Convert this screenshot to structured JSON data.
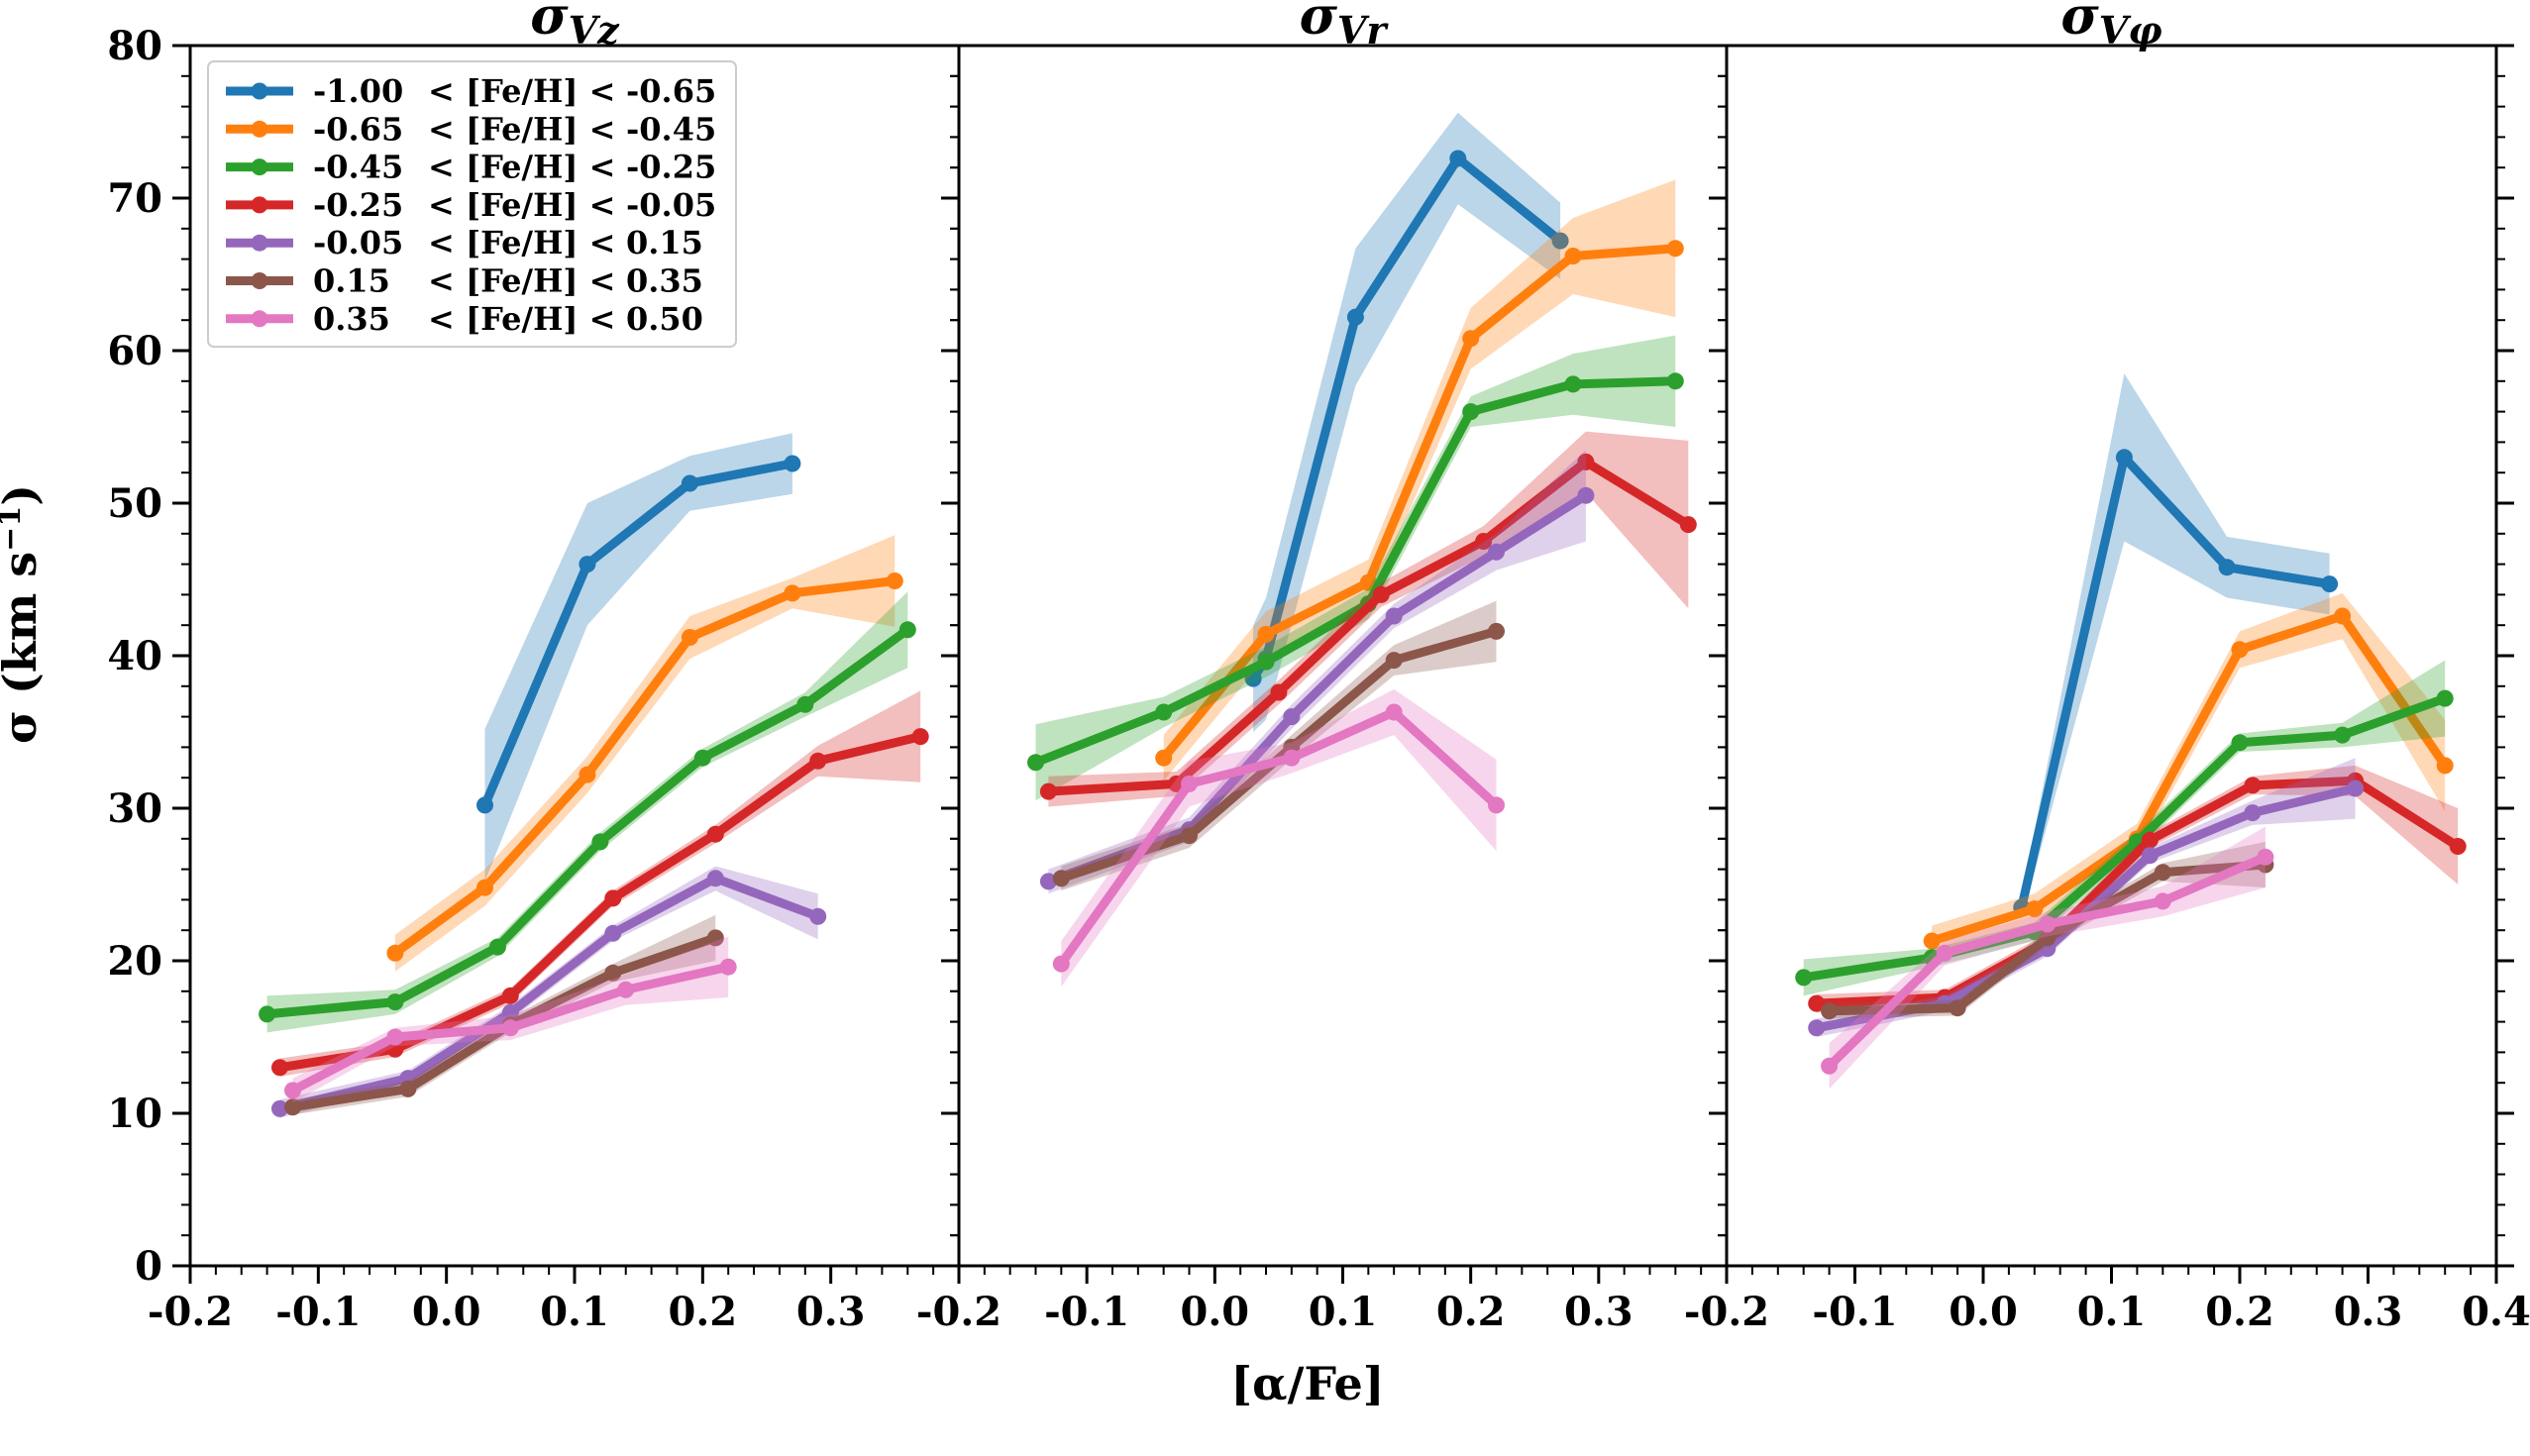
{
  "figure": {
    "xlabel": "[α/Fe]",
    "ylabel": "σ (km s",
    "ylabel_sup": "−1",
    "ylabel_close": ")"
  },
  "colors": {
    "blue": "#1f77b4",
    "orange": "#ff7f0e",
    "green": "#2ca02c",
    "red": "#d62728",
    "purple": "#9467bd",
    "brown": "#8c564b",
    "pink": "#e377c2"
  },
  "chart_data": [
    {
      "type": "line",
      "title": "σ",
      "title_sub": "Vz",
      "xlim": [
        -0.2,
        0.4
      ],
      "ylim": [
        0,
        80
      ],
      "xticks": [
        -0.2,
        -0.1,
        0.0,
        0.1,
        0.2,
        0.3
      ],
      "xtick_labels": [
        "-0.2",
        "-0.1",
        "0.0",
        "0.1",
        "0.2",
        "0.3"
      ],
      "yticks": [
        0,
        10,
        20,
        30,
        40,
        50,
        60,
        70,
        80
      ],
      "ytick_labels": [
        "0",
        "10",
        "20",
        "30",
        "40",
        "50",
        "60",
        "70",
        "80"
      ],
      "legend_position": "upper-left",
      "series": [
        {
          "name": "-1.00 < [Fe/H] < -0.65",
          "low": "-1.00",
          "high": "-0.65",
          "color": "blue",
          "x": [
            0.03,
            0.11,
            0.19,
            0.27
          ],
          "y": [
            30.2,
            46.0,
            51.3,
            52.6
          ],
          "err": [
            5.0,
            4.0,
            1.8,
            2.0
          ]
        },
        {
          "name": "-0.65 < [Fe/H] < -0.45",
          "low": "-0.65",
          "high": "-0.45",
          "color": "orange",
          "x": [
            -0.04,
            0.03,
            0.11,
            0.19,
            0.27,
            0.35
          ],
          "y": [
            20.5,
            24.8,
            32.2,
            41.2,
            44.1,
            44.9
          ],
          "err": [
            1.2,
            1.2,
            1.2,
            1.4,
            1.0,
            3.0
          ]
        },
        {
          "name": "-0.45 < [Fe/H] < -0.25",
          "low": "-0.45",
          "high": "-0.25",
          "color": "green",
          "x": [
            -0.14,
            -0.04,
            0.04,
            0.12,
            0.2,
            0.28,
            0.36
          ],
          "y": [
            16.5,
            17.3,
            20.9,
            27.8,
            33.3,
            36.8,
            41.7
          ],
          "err": [
            1.2,
            0.8,
            0.6,
            0.6,
            0.6,
            0.8,
            2.5
          ]
        },
        {
          "name": "-0.25 < [Fe/H] < -0.05",
          "low": "-0.25",
          "high": "-0.05",
          "color": "red",
          "x": [
            -0.13,
            -0.04,
            0.05,
            0.13,
            0.21,
            0.29,
            0.37
          ],
          "y": [
            13.0,
            14.2,
            17.7,
            24.1,
            28.3,
            33.1,
            34.7
          ],
          "err": [
            0.6,
            0.5,
            0.5,
            0.5,
            0.6,
            1.0,
            3.0
          ]
        },
        {
          "name": "-0.05 < [Fe/H] < 0.15",
          "low": "-0.05",
          "high": "0.15",
          "color": "purple",
          "x": [
            -0.13,
            -0.03,
            0.05,
            0.13,
            0.21,
            0.29
          ],
          "y": [
            10.3,
            12.3,
            16.6,
            21.8,
            25.4,
            22.9
          ],
          "err": [
            0.6,
            0.5,
            0.5,
            0.5,
            0.8,
            1.5
          ]
        },
        {
          "name": "0.15 < [Fe/H] < 0.35",
          "low": "0.15",
          "high": "0.35",
          "color": "brown",
          "x": [
            -0.12,
            -0.03,
            0.05,
            0.13,
            0.21
          ],
          "y": [
            10.4,
            11.6,
            15.8,
            19.2,
            21.5
          ],
          "err": [
            0.5,
            0.5,
            0.5,
            0.6,
            1.5
          ]
        },
        {
          "name": "0.35 < [Fe/H] < 0.50",
          "low": "0.35",
          "high": "0.50",
          "color": "pink",
          "x": [
            -0.12,
            -0.04,
            0.05,
            0.14,
            0.22
          ],
          "y": [
            11.5,
            15.0,
            15.6,
            18.1,
            19.6
          ],
          "err": [
            0.8,
            0.6,
            0.8,
            1.0,
            2.0
          ]
        }
      ]
    },
    {
      "type": "line",
      "title": "σ",
      "title_sub": "Vr",
      "xlim": [
        -0.2,
        0.4
      ],
      "ylim": [
        0,
        80
      ],
      "xticks": [
        -0.2,
        -0.1,
        0.0,
        0.1,
        0.2,
        0.3
      ],
      "xtick_labels": [
        "-0.2",
        "-0.1",
        "0.0",
        "0.1",
        "0.2",
        "0.3"
      ],
      "series": [
        {
          "name": "-1.00 < [Fe/H] < -0.65",
          "color": "blue",
          "x": [
            0.03,
            0.04,
            0.11,
            0.19,
            0.27
          ],
          "y": [
            38.5,
            39.8,
            62.2,
            72.6,
            67.2
          ],
          "err": [
            3.5,
            4.0,
            4.5,
            3.0,
            2.5
          ]
        },
        {
          "name": "-0.65 < [Fe/H] < -0.45",
          "color": "orange",
          "x": [
            -0.04,
            0.04,
            0.12,
            0.2,
            0.28,
            0.36
          ],
          "y": [
            33.3,
            41.4,
            44.8,
            60.8,
            66.2,
            66.7
          ],
          "err": [
            1.5,
            1.5,
            1.5,
            2.0,
            2.5,
            4.5
          ]
        },
        {
          "name": "-0.45 < [Fe/H] < -0.25",
          "color": "green",
          "x": [
            -0.14,
            -0.04,
            0.04,
            0.12,
            0.2,
            0.28,
            0.36
          ],
          "y": [
            33.0,
            36.3,
            39.6,
            43.4,
            56.0,
            57.8,
            58.0
          ],
          "err": [
            2.5,
            1.0,
            1.0,
            1.0,
            1.0,
            2.0,
            3.0
          ]
        },
        {
          "name": "-0.25 < [Fe/H] < -0.05",
          "color": "red",
          "x": [
            -0.13,
            -0.03,
            0.05,
            0.13,
            0.21,
            0.29,
            0.37
          ],
          "y": [
            31.1,
            31.6,
            37.6,
            44.0,
            47.5,
            52.7,
            48.6
          ],
          "err": [
            1.0,
            0.8,
            0.8,
            0.8,
            1.0,
            2.0,
            5.5
          ]
        },
        {
          "name": "-0.05 < [Fe/H] < 0.15",
          "color": "purple",
          "x": [
            -0.13,
            -0.02,
            0.06,
            0.14,
            0.22,
            0.29
          ],
          "y": [
            25.2,
            28.6,
            36.0,
            42.6,
            46.8,
            50.5
          ],
          "err": [
            0.8,
            0.8,
            0.8,
            0.8,
            1.2,
            3.0
          ]
        },
        {
          "name": "0.15 < [Fe/H] < 0.35",
          "color": "brown",
          "x": [
            -0.12,
            -0.02,
            0.06,
            0.14,
            0.22
          ],
          "y": [
            25.4,
            28.2,
            34.0,
            39.7,
            41.6
          ],
          "err": [
            0.8,
            0.8,
            0.8,
            1.0,
            2.0
          ]
        },
        {
          "name": "0.35 < [Fe/H] < 0.50",
          "color": "pink",
          "x": [
            -0.12,
            -0.02,
            0.06,
            0.14,
            0.22
          ],
          "y": [
            19.8,
            31.6,
            33.3,
            36.3,
            30.2
          ],
          "err": [
            1.5,
            1.5,
            1.0,
            1.5,
            3.0
          ]
        }
      ]
    },
    {
      "type": "line",
      "title": "σ",
      "title_sub": "Vφ",
      "xlim": [
        -0.2,
        0.4
      ],
      "ylim": [
        0,
        80
      ],
      "xticks": [
        -0.2,
        -0.1,
        0.0,
        0.1,
        0.2,
        0.3,
        0.4
      ],
      "xtick_labels": [
        "-0.2",
        "-0.1",
        "0.0",
        "0.1",
        "0.2",
        "0.3",
        "0.4"
      ],
      "series": [
        {
          "name": "-1.00 < [Fe/H] < -0.65",
          "color": "blue",
          "x": [
            0.03,
            0.11,
            0.19,
            0.27
          ],
          "y": [
            23.5,
            53.0,
            45.8,
            44.7
          ],
          "err": [
            0.8,
            5.5,
            2.0,
            2.0
          ]
        },
        {
          "name": "-0.65 < [Fe/H] < -0.45",
          "color": "orange",
          "x": [
            -0.04,
            0.04,
            0.12,
            0.2,
            0.28,
            0.36
          ],
          "y": [
            21.3,
            23.4,
            28.0,
            40.4,
            42.6,
            32.8
          ],
          "err": [
            1.0,
            1.0,
            1.0,
            1.2,
            1.5,
            3.0
          ]
        },
        {
          "name": "-0.45 < [Fe/H] < -0.25",
          "color": "green",
          "x": [
            -0.14,
            -0.04,
            0.04,
            0.12,
            0.2,
            0.28,
            0.36
          ],
          "y": [
            18.9,
            20.2,
            21.9,
            27.8,
            34.3,
            34.8,
            37.2
          ],
          "err": [
            1.2,
            0.6,
            0.6,
            0.6,
            0.6,
            0.8,
            2.5
          ]
        },
        {
          "name": "-0.25 < [Fe/H] < -0.05",
          "color": "red",
          "x": [
            -0.13,
            -0.03,
            0.05,
            0.13,
            0.21,
            0.29,
            0.37
          ],
          "y": [
            17.2,
            17.6,
            21.3,
            27.9,
            31.5,
            31.8,
            27.5
          ],
          "err": [
            0.6,
            0.5,
            0.5,
            0.5,
            0.6,
            1.0,
            2.5
          ]
        },
        {
          "name": "-0.05 < [Fe/H] < 0.15",
          "color": "purple",
          "x": [
            -0.13,
            -0.03,
            0.05,
            0.13,
            0.21,
            0.29
          ],
          "y": [
            15.6,
            17.2,
            20.8,
            26.9,
            29.7,
            31.3
          ],
          "err": [
            0.6,
            0.5,
            0.5,
            0.5,
            0.8,
            2.0
          ]
        },
        {
          "name": "0.15 < [Fe/H] < 0.35",
          "color": "brown",
          "x": [
            -0.12,
            -0.02,
            0.05,
            0.14,
            0.22
          ],
          "y": [
            16.7,
            16.9,
            21.5,
            25.8,
            26.3
          ],
          "err": [
            0.5,
            0.5,
            0.5,
            0.6,
            1.5
          ]
        },
        {
          "name": "0.35 < [Fe/H] < 0.50",
          "color": "pink",
          "x": [
            -0.12,
            -0.03,
            0.05,
            0.14,
            0.22
          ],
          "y": [
            13.1,
            20.5,
            22.4,
            23.9,
            26.8
          ],
          "err": [
            1.5,
            0.8,
            0.8,
            1.0,
            2.0
          ]
        }
      ]
    }
  ]
}
